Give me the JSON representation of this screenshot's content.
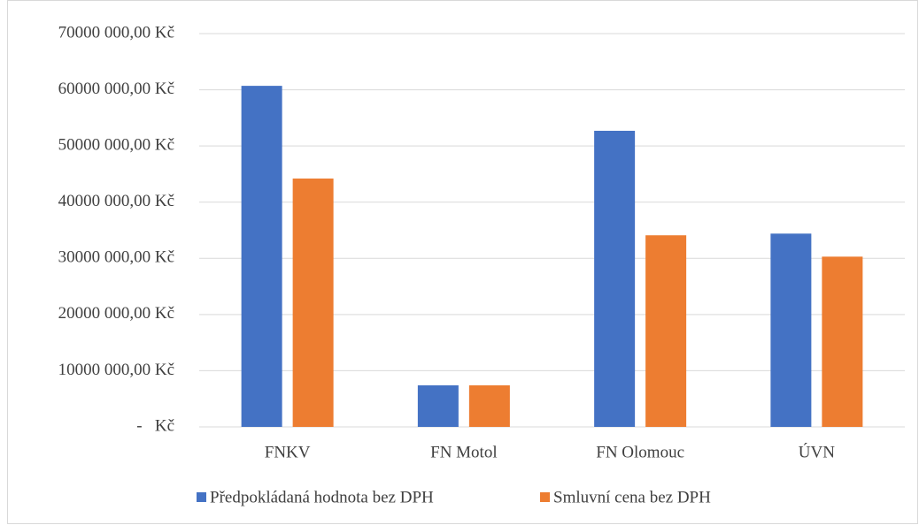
{
  "chart_data": {
    "type": "bar",
    "categories": [
      "FNKV",
      "FN Motol",
      "FN Olomouc",
      "ÚVN"
    ],
    "series": [
      {
        "name": "Předpokládaná hodnota bez DPH",
        "color": "#4472c4",
        "values": [
          60700000,
          7400000,
          52700000,
          34400000
        ]
      },
      {
        "name": "Smluvní cena bez DPH",
        "color": "#ed7d31",
        "values": [
          44200000,
          7400000,
          34100000,
          30300000
        ]
      }
    ],
    "ylim": [
      0,
      70000000
    ],
    "yticks": [
      {
        "value": 0,
        "label": "-   Kč"
      },
      {
        "value": 10000000,
        "label": "10000 000,00 Kč"
      },
      {
        "value": 20000000,
        "label": "20000 000,00 Kč"
      },
      {
        "value": 30000000,
        "label": "30000 000,00 Kč"
      },
      {
        "value": 40000000,
        "label": "40000 000,00 Kč"
      },
      {
        "value": 50000000,
        "label": "50000 000,00 Kč"
      },
      {
        "value": 60000000,
        "label": "60000 000,00 Kč"
      },
      {
        "value": 70000000,
        "label": "70000 000,00 Kč"
      }
    ],
    "grid": true,
    "legend": "bottom"
  }
}
